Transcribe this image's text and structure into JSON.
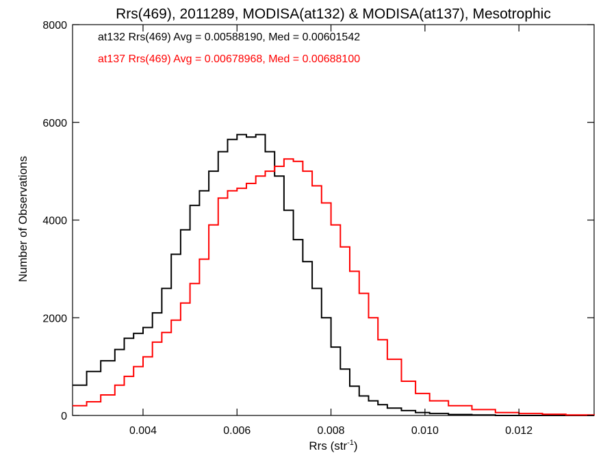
{
  "chart_data": {
    "type": "line",
    "title": "Rrs(469), 2011289, MODISA(at132) & MODISA(at137), Mesotrophic",
    "xlabel": "Rrs (str",
    "xlabel_sup": "-1",
    "xlabel_close": ")",
    "ylabel": "Number of Observations",
    "xlim": [
      0.0025,
      0.0136
    ],
    "ylim": [
      0,
      8000
    ],
    "x_ticks": [
      0.004,
      0.006,
      0.008,
      0.01,
      0.012
    ],
    "x_tick_labels": [
      "0.004",
      "0.006",
      "0.008",
      "0.010",
      "0.012"
    ],
    "y_ticks": [
      0,
      2000,
      4000,
      6000,
      8000
    ],
    "y_tick_labels": [
      "0",
      "2000",
      "4000",
      "6000",
      "8000"
    ],
    "grid": false,
    "step": true,
    "annotations": [
      {
        "text": "at132 Rrs(469) Avg = 0.00588190, Med = 0.00601542",
        "color": "#000000"
      },
      {
        "text": "at137 Rrs(469) Avg = 0.00678968, Med = 0.00688100",
        "color": "#ff0000"
      }
    ],
    "series": [
      {
        "color": "#000000",
        "x": [
          0.0025,
          0.0028,
          0.0031,
          0.0034,
          0.0036,
          0.0038,
          0.004,
          0.0042,
          0.0044,
          0.0046,
          0.0048,
          0.005,
          0.0052,
          0.0054,
          0.0056,
          0.0058,
          0.006,
          0.0062,
          0.0064,
          0.0066,
          0.0068,
          0.007,
          0.0072,
          0.0074,
          0.0076,
          0.0078,
          0.008,
          0.0082,
          0.0084,
          0.0086,
          0.0088,
          0.009,
          0.0092,
          0.0095,
          0.0098,
          0.0101,
          0.0105,
          0.011,
          0.0115,
          0.0136
        ],
        "values": [
          620,
          900,
          1120,
          1350,
          1580,
          1680,
          1800,
          2100,
          2600,
          3300,
          3800,
          4300,
          4600,
          5000,
          5400,
          5650,
          5750,
          5700,
          5750,
          5400,
          4900,
          4200,
          3600,
          3150,
          2600,
          2000,
          1400,
          950,
          600,
          400,
          300,
          220,
          150,
          100,
          60,
          40,
          20,
          10,
          0,
          0
        ]
      },
      {
        "color": "#ff0000",
        "x": [
          0.0025,
          0.0028,
          0.0031,
          0.0034,
          0.0036,
          0.0038,
          0.004,
          0.0042,
          0.0044,
          0.0046,
          0.0048,
          0.005,
          0.0052,
          0.0054,
          0.0056,
          0.0058,
          0.006,
          0.0062,
          0.0064,
          0.0066,
          0.0068,
          0.007,
          0.0072,
          0.0074,
          0.0076,
          0.0078,
          0.008,
          0.0082,
          0.0084,
          0.0086,
          0.0088,
          0.009,
          0.0092,
          0.0095,
          0.0098,
          0.0101,
          0.0105,
          0.011,
          0.0115,
          0.012,
          0.0125,
          0.013,
          0.0136
        ],
        "values": [
          200,
          280,
          420,
          620,
          800,
          1000,
          1200,
          1500,
          1700,
          1950,
          2300,
          2700,
          3200,
          3900,
          4450,
          4600,
          4650,
          4750,
          4900,
          5000,
          5100,
          5250,
          5200,
          5000,
          4700,
          4350,
          3900,
          3450,
          2950,
          2500,
          2000,
          1550,
          1150,
          700,
          450,
          300,
          200,
          120,
          60,
          40,
          25,
          10,
          0
        ]
      }
    ]
  }
}
